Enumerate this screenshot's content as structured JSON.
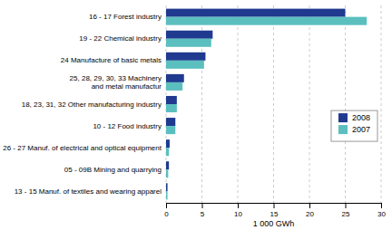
{
  "chart_data": {
    "type": "bar",
    "orientation": "horizontal",
    "categories": [
      "16 - 17 Forest industry",
      "19 - 22 Chemical industry",
      "24 Manufacture of basic metals",
      "25, 28, 29, 30, 33 Machinery\nand metal manufactur",
      "18, 23, 31, 32 Other manufacturing industry",
      "10 - 12 Food industry",
      "26 - 27 Manuf. of electrical and optical equipment",
      "05 - 09B Mining and quarrying",
      "13 - 15 Manuf. of textiles and wearing apparel"
    ],
    "series": [
      {
        "name": "2008",
        "color": "#1F3A8F",
        "values": [
          25.0,
          6.5,
          5.5,
          2.5,
          1.5,
          1.3,
          0.5,
          0.4,
          0.2
        ]
      },
      {
        "name": "2007",
        "color": "#5BBFBF",
        "values": [
          28.0,
          6.3,
          5.3,
          2.3,
          1.5,
          1.3,
          0.4,
          0.3,
          0.2
        ]
      }
    ],
    "xlabel": "1 000 GWh",
    "xlim": [
      0,
      30
    ],
    "xticks": [
      0,
      5,
      10,
      15,
      20,
      25,
      30
    ],
    "grid": true,
    "legend": "right"
  }
}
